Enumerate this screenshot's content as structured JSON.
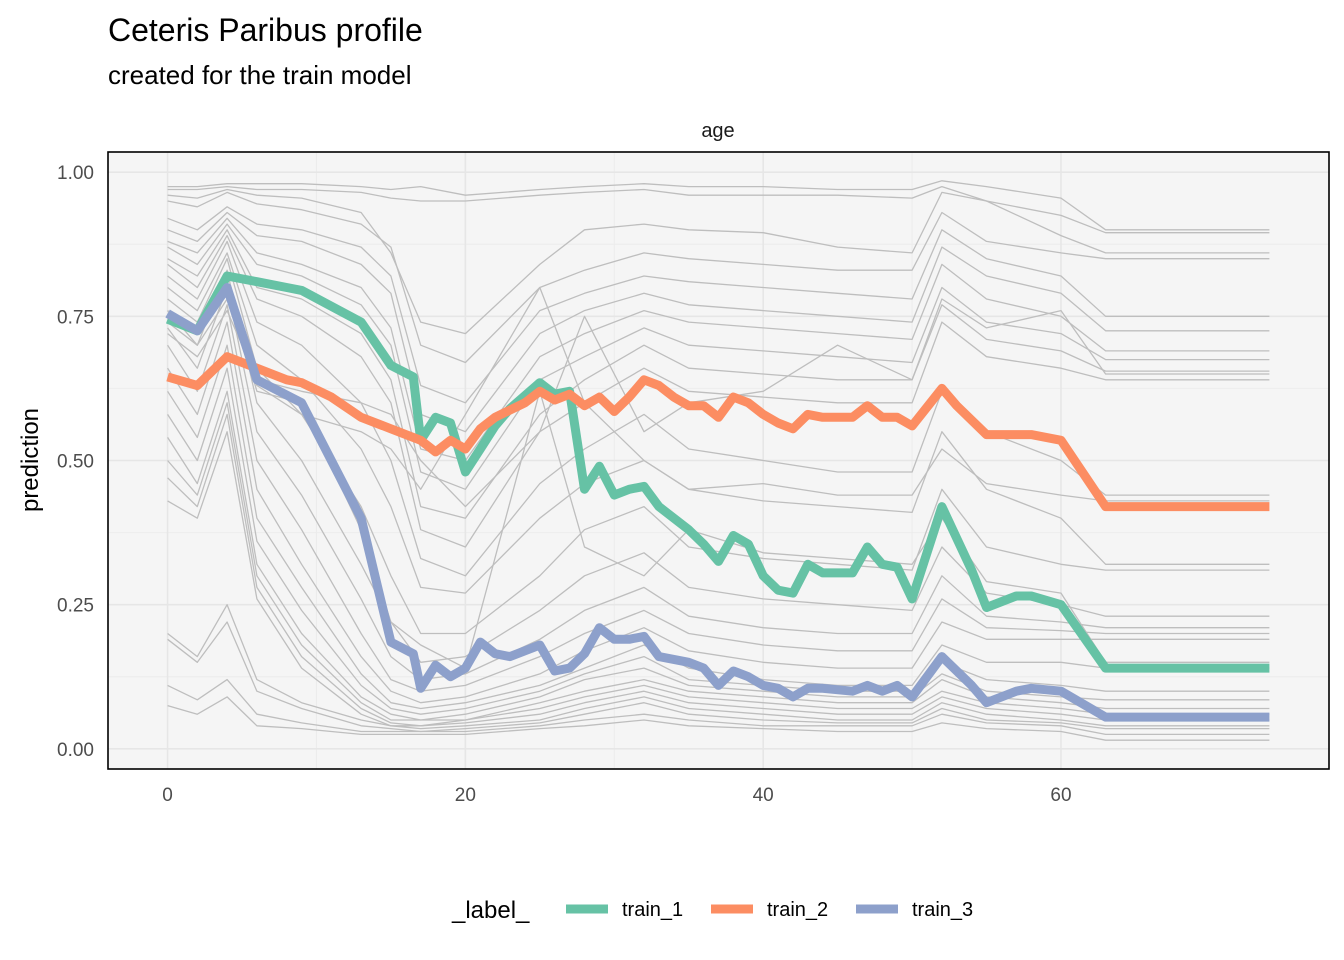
{
  "chart_data": {
    "type": "line",
    "title": "Ceteris Paribus profile",
    "subtitle": "created for the train model",
    "facet_label": "age",
    "xlabel": "",
    "ylabel": "prediction",
    "xlim": [
      -4,
      78
    ],
    "ylim": [
      -0.035,
      1.035
    ],
    "x_ticks": [
      0,
      20,
      40,
      60
    ],
    "y_ticks": [
      0.0,
      0.25,
      0.5,
      0.75,
      1.0
    ],
    "y_tick_labels": [
      "0.00",
      "0.25",
      "0.50",
      "0.75",
      "1.00"
    ],
    "grid": true,
    "panel_background": "#f5f5f5",
    "legend": {
      "title": "_label_",
      "position": "bottom"
    },
    "series": [
      {
        "name": "train_1",
        "color": "#66c2a5",
        "x": [
          0,
          2,
          4,
          6,
          8,
          9,
          13,
          15,
          16.5,
          17,
          18,
          19,
          20,
          21,
          22,
          23,
          25,
          26,
          27,
          28,
          29,
          30,
          31,
          32,
          33,
          35,
          36,
          37,
          38,
          39,
          40,
          41,
          42,
          43,
          44,
          46,
          47,
          48,
          49,
          50,
          52,
          54,
          55,
          57,
          58,
          60,
          63,
          74
        ],
        "values": [
          0.745,
          0.725,
          0.82,
          0.81,
          0.8,
          0.795,
          0.74,
          0.665,
          0.645,
          0.535,
          0.575,
          0.565,
          0.48,
          0.52,
          0.56,
          0.59,
          0.635,
          0.615,
          0.62,
          0.45,
          0.49,
          0.44,
          0.45,
          0.455,
          0.42,
          0.38,
          0.355,
          0.325,
          0.37,
          0.355,
          0.3,
          0.275,
          0.27,
          0.32,
          0.305,
          0.305,
          0.35,
          0.32,
          0.315,
          0.26,
          0.42,
          0.31,
          0.245,
          0.265,
          0.265,
          0.25,
          0.14,
          0.14
        ]
      },
      {
        "name": "train_2",
        "color": "#fc8d62",
        "x": [
          0,
          2,
          4,
          6,
          8,
          9,
          11,
          13,
          15,
          17,
          18,
          19,
          20,
          21,
          22,
          24,
          25,
          26,
          27,
          28,
          29,
          30,
          31,
          32,
          33,
          34,
          35,
          36,
          37,
          38,
          39,
          40,
          41,
          42,
          43,
          44,
          46,
          47,
          48,
          49,
          50,
          52,
          53,
          55,
          57,
          58,
          60,
          63,
          74
        ],
        "values": [
          0.645,
          0.63,
          0.68,
          0.66,
          0.64,
          0.635,
          0.61,
          0.575,
          0.555,
          0.535,
          0.515,
          0.535,
          0.52,
          0.555,
          0.575,
          0.6,
          0.62,
          0.605,
          0.615,
          0.595,
          0.61,
          0.585,
          0.61,
          0.64,
          0.63,
          0.61,
          0.595,
          0.595,
          0.575,
          0.61,
          0.6,
          0.58,
          0.565,
          0.555,
          0.58,
          0.575,
          0.575,
          0.595,
          0.575,
          0.575,
          0.56,
          0.625,
          0.595,
          0.545,
          0.545,
          0.545,
          0.535,
          0.42,
          0.42
        ]
      },
      {
        "name": "train_3",
        "color": "#8da0cb",
        "x": [
          0,
          2,
          4,
          6,
          9,
          13,
          15,
          16.5,
          17,
          18,
          19,
          20,
          21,
          22,
          23,
          24,
          25,
          26,
          27,
          28,
          29,
          30,
          31,
          32,
          33,
          35,
          36,
          37,
          38,
          39,
          40,
          41,
          42,
          43,
          44,
          46,
          47,
          48,
          49,
          50,
          52,
          54,
          55,
          57,
          58,
          60,
          63,
          74
        ],
        "values": [
          0.755,
          0.725,
          0.8,
          0.64,
          0.6,
          0.4,
          0.185,
          0.165,
          0.105,
          0.145,
          0.125,
          0.14,
          0.185,
          0.165,
          0.16,
          0.17,
          0.18,
          0.135,
          0.14,
          0.165,
          0.21,
          0.19,
          0.19,
          0.195,
          0.16,
          0.15,
          0.14,
          0.11,
          0.135,
          0.125,
          0.11,
          0.105,
          0.09,
          0.105,
          0.105,
          0.1,
          0.11,
          0.1,
          0.11,
          0.09,
          0.16,
          0.11,
          0.08,
          0.1,
          0.105,
          0.1,
          0.055,
          0.055
        ]
      }
    ],
    "background_lines": {
      "color": "#bebebe",
      "x": [
        0,
        2,
        4,
        6,
        9,
        13,
        15,
        17,
        20,
        25,
        28,
        32,
        35,
        40,
        45,
        50,
        52,
        55,
        60,
        63,
        74
      ],
      "profiles": [
        [
          0.975,
          0.975,
          0.98,
          0.98,
          0.98,
          0.975,
          0.97,
          0.975,
          0.96,
          0.97,
          0.975,
          0.98,
          0.975,
          0.975,
          0.97,
          0.97,
          0.985,
          0.975,
          0.955,
          0.9,
          0.9
        ],
        [
          0.97,
          0.97,
          0.975,
          0.97,
          0.97,
          0.965,
          0.955,
          0.95,
          0.95,
          0.96,
          0.965,
          0.97,
          0.96,
          0.96,
          0.96,
          0.955,
          0.975,
          0.95,
          0.925,
          0.895,
          0.895
        ],
        [
          0.96,
          0.955,
          0.97,
          0.96,
          0.955,
          0.93,
          0.86,
          0.74,
          0.72,
          0.84,
          0.9,
          0.91,
          0.9,
          0.895,
          0.87,
          0.86,
          0.965,
          0.95,
          0.89,
          0.86,
          0.86
        ],
        [
          0.95,
          0.94,
          0.965,
          0.945,
          0.935,
          0.91,
          0.87,
          0.7,
          0.67,
          0.8,
          0.83,
          0.86,
          0.85,
          0.84,
          0.83,
          0.83,
          0.93,
          0.88,
          0.86,
          0.85,
          0.85
        ],
        [
          0.92,
          0.9,
          0.94,
          0.91,
          0.9,
          0.87,
          0.82,
          0.63,
          0.6,
          0.76,
          0.79,
          0.82,
          0.81,
          0.8,
          0.79,
          0.78,
          0.9,
          0.85,
          0.82,
          0.75,
          0.75
        ],
        [
          0.9,
          0.88,
          0.93,
          0.89,
          0.88,
          0.84,
          0.79,
          0.58,
          0.55,
          0.72,
          0.76,
          0.79,
          0.77,
          0.76,
          0.75,
          0.74,
          0.87,
          0.82,
          0.79,
          0.725,
          0.725
        ],
        [
          0.88,
          0.86,
          0.92,
          0.86,
          0.84,
          0.8,
          0.73,
          0.52,
          0.5,
          0.68,
          0.72,
          0.76,
          0.74,
          0.73,
          0.72,
          0.71,
          0.84,
          0.78,
          0.75,
          0.69,
          0.69
        ],
        [
          0.87,
          0.84,
          0.91,
          0.84,
          0.82,
          0.77,
          0.7,
          0.48,
          0.45,
          0.64,
          0.68,
          0.73,
          0.7,
          0.69,
          0.68,
          0.67,
          0.8,
          0.74,
          0.72,
          0.675,
          0.675
        ],
        [
          0.85,
          0.82,
          0.9,
          0.8,
          0.78,
          0.72,
          0.64,
          0.42,
          0.4,
          0.58,
          0.64,
          0.7,
          0.66,
          0.65,
          0.64,
          0.64,
          0.77,
          0.71,
          0.69,
          0.655,
          0.655
        ],
        [
          0.84,
          0.8,
          0.89,
          0.78,
          0.75,
          0.68,
          0.6,
          0.38,
          0.35,
          0.55,
          0.6,
          0.66,
          0.62,
          0.61,
          0.6,
          0.6,
          0.74,
          0.68,
          0.66,
          0.64,
          0.64
        ],
        [
          0.82,
          0.78,
          0.88,
          0.74,
          0.7,
          0.6,
          0.5,
          0.33,
          0.3,
          0.46,
          0.52,
          0.58,
          0.52,
          0.5,
          0.48,
          0.48,
          0.62,
          0.55,
          0.5,
          0.44,
          0.44
        ],
        [
          0.8,
          0.76,
          0.86,
          0.7,
          0.64,
          0.52,
          0.42,
          0.28,
          0.27,
          0.4,
          0.46,
          0.5,
          0.45,
          0.43,
          0.42,
          0.41,
          0.55,
          0.45,
          0.4,
          0.32,
          0.32
        ],
        [
          0.78,
          0.74,
          0.85,
          0.66,
          0.58,
          0.42,
          0.3,
          0.2,
          0.2,
          0.3,
          0.38,
          0.42,
          0.35,
          0.33,
          0.32,
          0.31,
          0.45,
          0.35,
          0.32,
          0.31,
          0.31
        ],
        [
          0.76,
          0.7,
          0.83,
          0.6,
          0.5,
          0.32,
          0.22,
          0.15,
          0.16,
          0.24,
          0.3,
          0.34,
          0.28,
          0.26,
          0.25,
          0.24,
          0.35,
          0.27,
          0.25,
          0.23,
          0.23
        ],
        [
          0.73,
          0.66,
          0.8,
          0.55,
          0.44,
          0.26,
          0.16,
          0.12,
          0.13,
          0.19,
          0.24,
          0.28,
          0.23,
          0.21,
          0.2,
          0.2,
          0.3,
          0.23,
          0.22,
          0.21,
          0.21
        ],
        [
          0.7,
          0.62,
          0.77,
          0.5,
          0.38,
          0.2,
          0.12,
          0.1,
          0.11,
          0.16,
          0.2,
          0.24,
          0.2,
          0.18,
          0.17,
          0.17,
          0.26,
          0.21,
          0.205,
          0.2,
          0.2
        ],
        [
          0.66,
          0.58,
          0.74,
          0.45,
          0.32,
          0.16,
          0.1,
          0.08,
          0.09,
          0.13,
          0.17,
          0.21,
          0.17,
          0.15,
          0.14,
          0.14,
          0.22,
          0.19,
          0.19,
          0.19,
          0.19
        ],
        [
          0.62,
          0.54,
          0.7,
          0.4,
          0.28,
          0.13,
          0.08,
          0.07,
          0.08,
          0.11,
          0.14,
          0.18,
          0.14,
          0.12,
          0.11,
          0.11,
          0.18,
          0.15,
          0.15,
          0.14,
          0.14
        ],
        [
          0.58,
          0.5,
          0.66,
          0.36,
          0.24,
          0.11,
          0.07,
          0.06,
          0.07,
          0.1,
          0.13,
          0.16,
          0.12,
          0.11,
          0.1,
          0.1,
          0.15,
          0.12,
          0.11,
          0.1,
          0.1
        ],
        [
          0.54,
          0.46,
          0.62,
          0.32,
          0.2,
          0.09,
          0.06,
          0.05,
          0.06,
          0.09,
          0.12,
          0.14,
          0.11,
          0.1,
          0.09,
          0.09,
          0.13,
          0.1,
          0.09,
          0.085,
          0.085
        ],
        [
          0.5,
          0.44,
          0.6,
          0.3,
          0.18,
          0.08,
          0.05,
          0.05,
          0.05,
          0.08,
          0.1,
          0.12,
          0.1,
          0.09,
          0.08,
          0.08,
          0.12,
          0.09,
          0.08,
          0.07,
          0.07
        ],
        [
          0.47,
          0.42,
          0.58,
          0.28,
          0.16,
          0.07,
          0.045,
          0.04,
          0.05,
          0.07,
          0.09,
          0.11,
          0.09,
          0.08,
          0.07,
          0.07,
          0.1,
          0.08,
          0.07,
          0.06,
          0.06
        ],
        [
          0.43,
          0.4,
          0.55,
          0.26,
          0.14,
          0.06,
          0.04,
          0.04,
          0.045,
          0.06,
          0.08,
          0.1,
          0.08,
          0.07,
          0.06,
          0.06,
          0.09,
          0.07,
          0.06,
          0.05,
          0.05
        ],
        [
          0.2,
          0.16,
          0.25,
          0.12,
          0.08,
          0.05,
          0.04,
          0.035,
          0.04,
          0.05,
          0.07,
          0.09,
          0.07,
          0.06,
          0.05,
          0.05,
          0.08,
          0.06,
          0.05,
          0.04,
          0.04
        ],
        [
          0.19,
          0.15,
          0.22,
          0.1,
          0.07,
          0.04,
          0.035,
          0.03,
          0.035,
          0.045,
          0.06,
          0.08,
          0.06,
          0.05,
          0.045,
          0.045,
          0.07,
          0.05,
          0.045,
          0.035,
          0.035
        ],
        [
          0.11,
          0.085,
          0.12,
          0.06,
          0.045,
          0.03,
          0.03,
          0.03,
          0.03,
          0.04,
          0.05,
          0.06,
          0.05,
          0.04,
          0.04,
          0.04,
          0.06,
          0.045,
          0.04,
          0.025,
          0.025
        ],
        [
          0.075,
          0.06,
          0.09,
          0.04,
          0.035,
          0.025,
          0.025,
          0.025,
          0.025,
          0.035,
          0.04,
          0.05,
          0.04,
          0.035,
          0.03,
          0.03,
          0.045,
          0.035,
          0.03,
          0.015,
          0.015
        ],
        [
          0.76,
          0.72,
          0.8,
          0.62,
          0.6,
          0.38,
          0.22,
          0.18,
          0.14,
          0.62,
          0.35,
          0.3,
          0.38,
          0.34,
          0.33,
          0.32,
          0.4,
          0.29,
          0.27,
          0.15,
          0.15
        ],
        [
          0.74,
          0.7,
          0.78,
          0.63,
          0.58,
          0.55,
          0.52,
          0.45,
          0.58,
          0.8,
          0.6,
          0.5,
          0.45,
          0.46,
          0.44,
          0.44,
          0.52,
          0.46,
          0.44,
          0.43,
          0.43
        ],
        [
          0.72,
          0.68,
          0.76,
          0.64,
          0.62,
          0.6,
          0.58,
          0.5,
          0.42,
          0.55,
          0.75,
          0.55,
          0.6,
          0.62,
          0.7,
          0.64,
          0.78,
          0.73,
          0.76,
          0.65,
          0.65
        ]
      ]
    }
  }
}
